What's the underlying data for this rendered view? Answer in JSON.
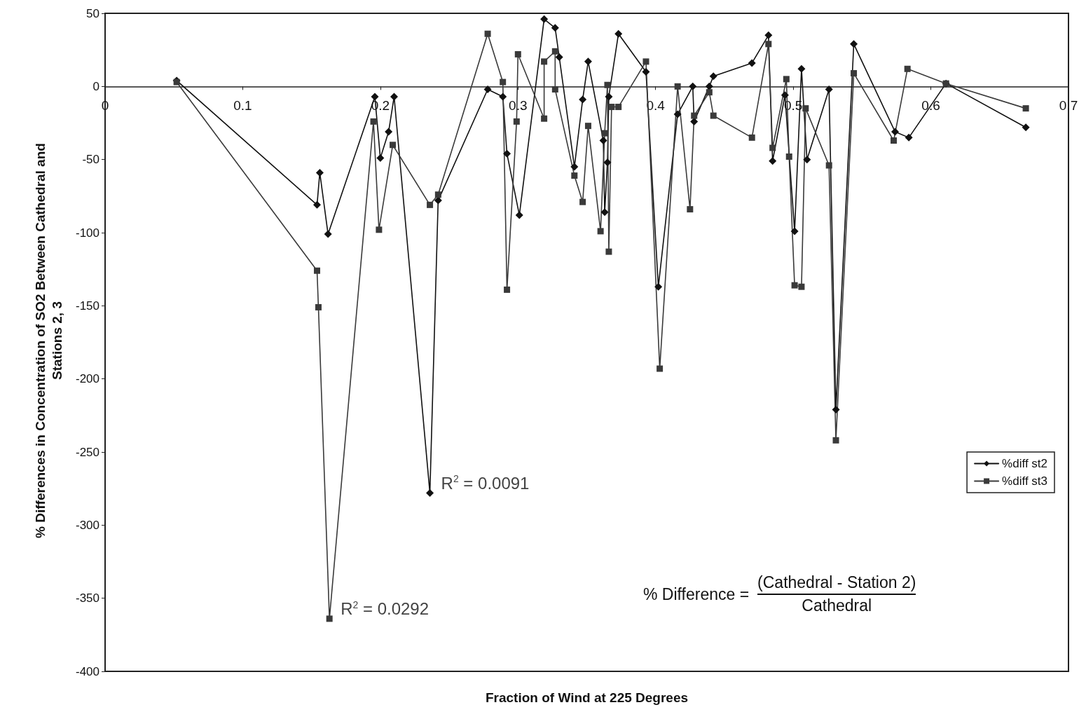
{
  "chart_data": {
    "type": "line",
    "xlabel": "Fraction of Wind at 225 Degrees",
    "ylabel": "% Differences in Concentration of SO2 Between Cathedral and Stations 2, 3",
    "xlim": [
      0,
      0.7
    ],
    "xticks": [
      0,
      0.1,
      0.2,
      0.3,
      0.4,
      0.5,
      0.6,
      0.7
    ],
    "ylim": [
      -400,
      50
    ],
    "yticks": [
      -400,
      -350,
      -300,
      -250,
      -200,
      -150,
      -100,
      -50,
      0,
      50
    ],
    "grid": false,
    "legend": "right",
    "line_style": "solid",
    "series": [
      {
        "name": "%diff st2",
        "color": "#111111",
        "marker": "diamond",
        "x": [
          0.052,
          0.154,
          0.156,
          0.162,
          0.196,
          0.2,
          0.206,
          0.21,
          0.236,
          0.242,
          0.278,
          0.289,
          0.292,
          0.301,
          0.319,
          0.327,
          0.33,
          0.341,
          0.347,
          0.351,
          0.362,
          0.363,
          0.365,
          0.366,
          0.373,
          0.393,
          0.402,
          0.416,
          0.427,
          0.428,
          0.439,
          0.442,
          0.47,
          0.482,
          0.485,
          0.494,
          0.501,
          0.506,
          0.51,
          0.526,
          0.531,
          0.544,
          0.574,
          0.584,
          0.611,
          0.669
        ],
        "values": [
          4,
          -81,
          -59,
          -101,
          -7,
          -49,
          -31,
          -7,
          -278,
          -78,
          -2,
          -7,
          -46,
          -88,
          46,
          40,
          20,
          -55,
          -9,
          17,
          -37,
          -86,
          -52,
          -7,
          36,
          10,
          -137,
          -19,
          0,
          -24,
          0,
          7,
          16,
          35,
          -51,
          -6,
          -99,
          12,
          -50,
          -2,
          -221,
          29,
          -31,
          -35,
          2,
          -28
        ]
      },
      {
        "name": "%diff st3",
        "color": "#3a3a3a",
        "marker": "square",
        "x": [
          0.052,
          0.154,
          0.155,
          0.163,
          0.195,
          0.199,
          0.209,
          0.236,
          0.242,
          0.278,
          0.289,
          0.292,
          0.299,
          0.3,
          0.319,
          0.319,
          0.327,
          0.327,
          0.341,
          0.347,
          0.351,
          0.36,
          0.363,
          0.365,
          0.366,
          0.368,
          0.373,
          0.393,
          0.403,
          0.416,
          0.425,
          0.428,
          0.439,
          0.442,
          0.47,
          0.482,
          0.485,
          0.495,
          0.497,
          0.501,
          0.506,
          0.509,
          0.526,
          0.531,
          0.544,
          0.573,
          0.583,
          0.611,
          0.669
        ],
        "values": [
          3,
          -126,
          -151,
          -364,
          -24,
          -98,
          -40,
          -81,
          -74,
          36,
          3,
          -139,
          -24,
          22,
          -22,
          17,
          24,
          -2,
          -61,
          -79,
          -27,
          -99,
          -32,
          1,
          -113,
          -14,
          -14,
          17,
          -193,
          0,
          -84,
          -20,
          -4,
          -20,
          -35,
          29,
          -42,
          5,
          -48,
          -136,
          -137,
          -15,
          -54,
          -242,
          9,
          -37,
          12,
          2,
          -15
        ]
      }
    ],
    "annotations": [
      {
        "text": "R$^{2}$ = 0.0091",
        "x": 0.236,
        "y": -278
      },
      {
        "text": "R$^{2}$ = 0.0292",
        "x": 0.163,
        "y": -364
      },
      "% Difference =",
      "(Cathedral - Station 2)",
      "Cathedral"
    ]
  }
}
